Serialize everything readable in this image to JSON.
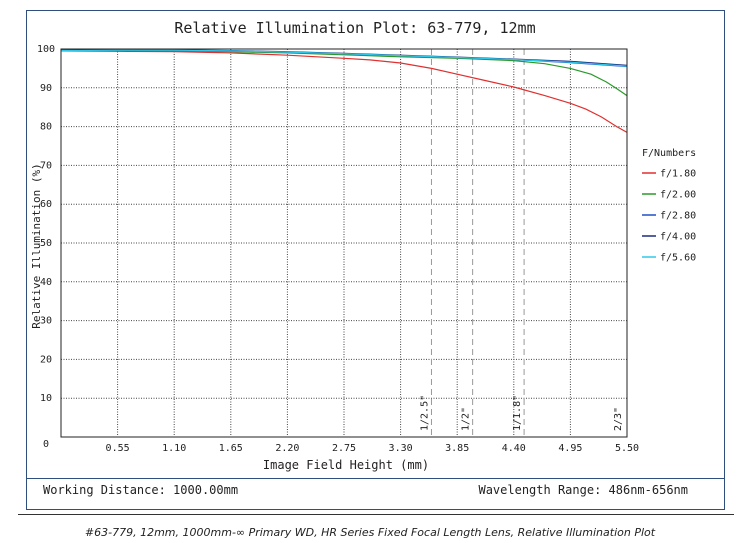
{
  "chart_data": {
    "type": "line",
    "title": "Relative Illumination Plot: 63-779, 12mm",
    "xlabel": "Image Field Height (mm)",
    "ylabel": "Relative Illumination (%)",
    "xlim": [
      0,
      5.5
    ],
    "ylim": [
      0,
      100
    ],
    "x_ticks": [
      "0.55",
      "1.10",
      "1.65",
      "2.20",
      "2.75",
      "3.30",
      "3.85",
      "4.40",
      "4.95",
      "5.50"
    ],
    "y_ticks": [
      "0",
      "10",
      "20",
      "30",
      "40",
      "50",
      "60",
      "70",
      "80",
      "90",
      "100"
    ],
    "grid": true,
    "legend_title": "F/Numbers",
    "legend_position": "right",
    "sensor_markers": [
      {
        "label": "1/2.5\"",
        "x": 3.6
      },
      {
        "label": "1/2\"",
        "x": 4.0
      },
      {
        "label": "1/1.8\"",
        "x": 4.5
      },
      {
        "label": "2/3\"",
        "x": 5.5
      }
    ],
    "series": [
      {
        "name": "f/1.80",
        "color": "#e03030",
        "x": [
          0,
          0.55,
          1.1,
          1.65,
          2.2,
          2.75,
          3.0,
          3.3,
          3.6,
          3.85,
          4.1,
          4.4,
          4.7,
          4.95,
          5.1,
          5.25,
          5.4,
          5.5
        ],
        "y": [
          99.5,
          99.4,
          99.3,
          99.0,
          98.4,
          97.6,
          97.2,
          96.4,
          95.0,
          93.5,
          92.0,
          90.2,
          88.0,
          86.0,
          84.5,
          82.5,
          80.0,
          78.5
        ]
      },
      {
        "name": "f/2.00",
        "color": "#2a9a2a",
        "x": [
          0,
          0.55,
          1.1,
          1.65,
          2.2,
          2.75,
          3.3,
          3.85,
          4.4,
          4.7,
          4.95,
          5.15,
          5.3,
          5.4,
          5.5
        ],
        "y": [
          99.5,
          99.6,
          99.5,
          99.3,
          99.0,
          98.5,
          98.0,
          97.6,
          97.0,
          96.2,
          95.0,
          93.5,
          91.5,
          89.8,
          88.0
        ]
      },
      {
        "name": "f/2.80",
        "color": "#2050c8",
        "x": [
          0,
          0.55,
          1.1,
          1.65,
          2.2,
          2.75,
          3.3,
          3.85,
          4.4,
          4.95,
          5.5
        ],
        "y": [
          99.6,
          99.7,
          99.7,
          99.5,
          99.2,
          98.8,
          98.3,
          97.8,
          97.3,
          96.5,
          95.5
        ]
      },
      {
        "name": "f/4.00",
        "color": "#1a2a80",
        "x": [
          0,
          0.55,
          1.1,
          1.65,
          2.2,
          2.75,
          3.3,
          3.85,
          4.4,
          4.95,
          5.5
        ],
        "y": [
          99.7,
          99.8,
          99.8,
          99.6,
          99.3,
          98.9,
          98.4,
          97.9,
          97.4,
          96.8,
          95.8
        ]
      },
      {
        "name": "f/5.60",
        "color": "#30c8e8",
        "x": [
          0,
          0.55,
          1.1,
          1.65,
          2.2,
          2.75,
          3.3,
          3.85,
          4.4,
          4.95,
          5.5
        ],
        "y": [
          99.6,
          99.7,
          99.7,
          99.5,
          99.2,
          98.8,
          98.3,
          97.8,
          97.3,
          96.6,
          95.6
        ]
      }
    ]
  },
  "footer": {
    "working_distance": "Working Distance: 1000.00mm",
    "wavelength_range": "Wavelength Range: 486nm-656nm"
  },
  "caption": "#63-779, 12mm, 1000mm-∞ Primary WD, HR Series Fixed Focal Length Lens, Relative Illumination Plot"
}
